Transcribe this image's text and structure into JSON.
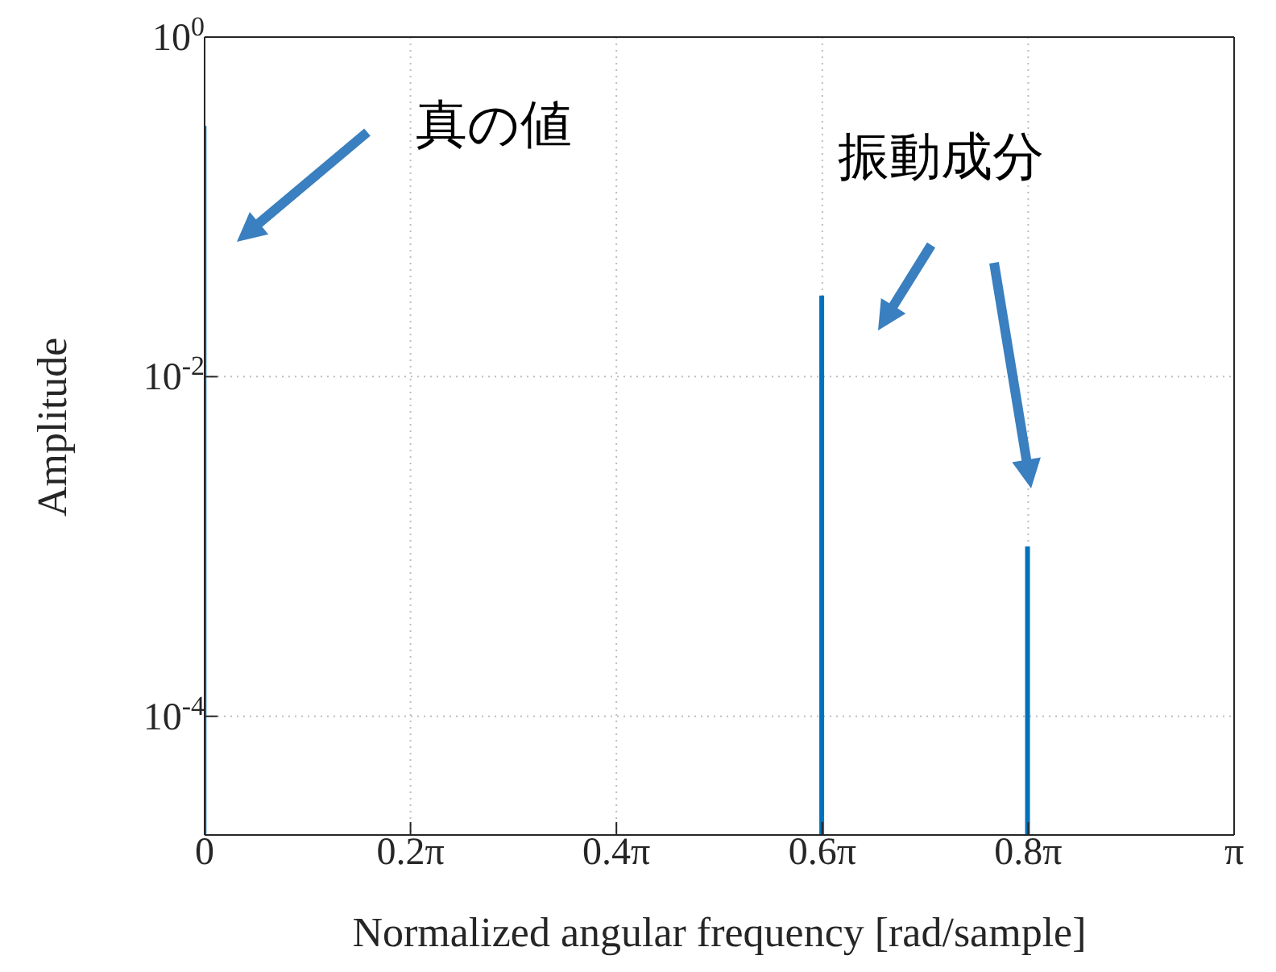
{
  "chart_data": {
    "type": "bar",
    "xlabel": "Normalized angular frequency [rad/sample]",
    "ylabel": "Amplitude",
    "x": [
      0,
      1.885,
      2.513
    ],
    "series": [
      {
        "color": "#0072bd",
        "values": [
          0.3,
          0.03,
          0.001
        ]
      }
    ],
    "xlim": [
      0,
      3.1416
    ],
    "xticks": [
      0,
      {
        "value": 0.6283,
        "label": "0.2π"
      },
      {
        "value": 1.2566,
        "label": "0.4π"
      },
      {
        "value": 1.885,
        "label": "0.6π"
      },
      {
        "value": 2.5133,
        "label": "0.8π"
      },
      {
        "value": 3.1416,
        "label": "π"
      }
    ],
    "ylim": [
      2e-05,
      1
    ],
    "yticks": [
      {
        "value": 0.0001,
        "label": "10$^{-4}$"
      },
      {
        "value": 0.01,
        "label": "10$^{-2}$"
      },
      {
        "value": 1,
        "label": "10$^{0}$"
      }
    ],
    "log": "y",
    "grid": true,
    "annotations": [
      "真の値",
      "振動成分"
    ]
  }
}
